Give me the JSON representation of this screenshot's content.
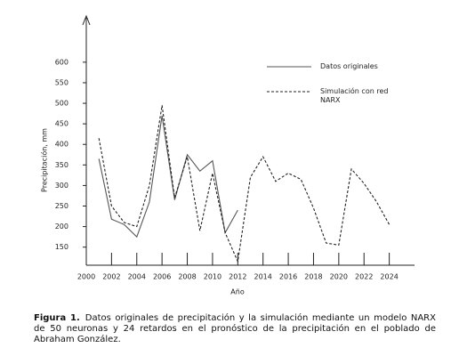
{
  "chart_data": {
    "type": "line",
    "x_label": "Año",
    "y_label": "Precipitación, mm",
    "x": [
      2001,
      2002,
      2003,
      2004,
      2005,
      2006,
      2007,
      2008,
      2009,
      2010,
      2011,
      2012,
      2013,
      2014,
      2015,
      2016,
      2017,
      2018,
      2019,
      2020,
      2021,
      2022,
      2023,
      2024
    ],
    "series": [
      {
        "name": "Datos originales",
        "color": "#555555",
        "line_style": "solid",
        "values": [
          365,
          218,
          205,
          175,
          260,
          470,
          265,
          375,
          335,
          360,
          185,
          240,
          null,
          null,
          null,
          null,
          null,
          null,
          null,
          null,
          null,
          null,
          null,
          null
        ]
      },
      {
        "name": "Simulación con red NARX",
        "color": "#222222",
        "line_style": "dashed",
        "values": [
          415,
          250,
          210,
          200,
          300,
          495,
          270,
          370,
          190,
          330,
          185,
          115,
          320,
          370,
          310,
          330,
          315,
          245,
          160,
          155,
          340,
          305,
          260,
          205
        ]
      }
    ],
    "xlim": [
      2000,
      2026
    ],
    "ylim": [
      106,
      708
    ],
    "xticks": [
      2000,
      2002,
      2004,
      2006,
      2008,
      2010,
      2012,
      2014,
      2016,
      2018,
      2020,
      2022,
      2024
    ],
    "yticks": [
      150,
      200,
      250,
      300,
      350,
      400,
      450,
      500,
      550,
      600
    ],
    "legend": "upper right"
  },
  "caption": {
    "label": "Figura 1.",
    "text": "Datos originales de precipitación y la simulación mediante un modelo NARX de 50 neuronas y 24 retardos en el pronóstico de la precipitación en el poblado de Abraham González."
  }
}
